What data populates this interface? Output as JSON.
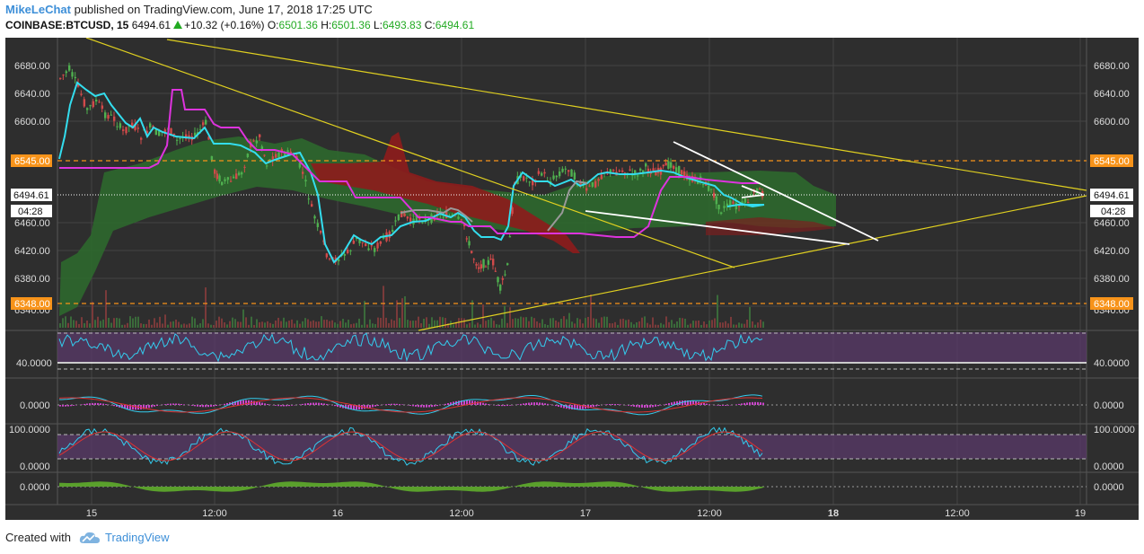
{
  "header": {
    "author": "MikeLeChat",
    "published_text": "published on TradingView.com, June 17, 2018 17:25 UTC",
    "symbol": "COINBASE:BTCUSD, 15",
    "last": "6494.61",
    "change": "+10.32 (+0.16%)",
    "o_label": "O:",
    "o_value": "6501.36",
    "h_label": "H:",
    "h_value": "6501.36",
    "l_label": "L:",
    "l_value": "6493.83",
    "c_label": "C:",
    "c_value": "6494.61"
  },
  "price_axis": {
    "ticks": [
      "6680.00",
      "6640.00",
      "6600.00",
      "6460.00",
      "6420.00",
      "6380.00",
      "6340.00"
    ],
    "resistance_label": "6545.00",
    "support_label": "6348.00",
    "current_label": "6494.61",
    "countdown_label": "04:28"
  },
  "indicators": {
    "rsi_label": "40.0000",
    "macd_label": "0.0000",
    "stoch_top_label": "100.0000",
    "stoch_bottom_label": "0.0000",
    "histogram_label": "0.0000"
  },
  "time_axis": {
    "labels": [
      "15",
      "12:00",
      "16",
      "12:00",
      "17",
      "12:00",
      "18",
      "12:00",
      "19"
    ]
  },
  "footer": {
    "created_with": "Created with",
    "brand": "TradingView"
  },
  "colors": {
    "background": "#2e2e2e",
    "resistance": "#f7931a",
    "tenkan": "#33ddee",
    "kijun": "#dd33dd",
    "cloud_bull": "#2f7a2f",
    "cloud_bear": "#9b2020",
    "trendline": "#e0d020",
    "pattern": "#ffffff"
  }
}
